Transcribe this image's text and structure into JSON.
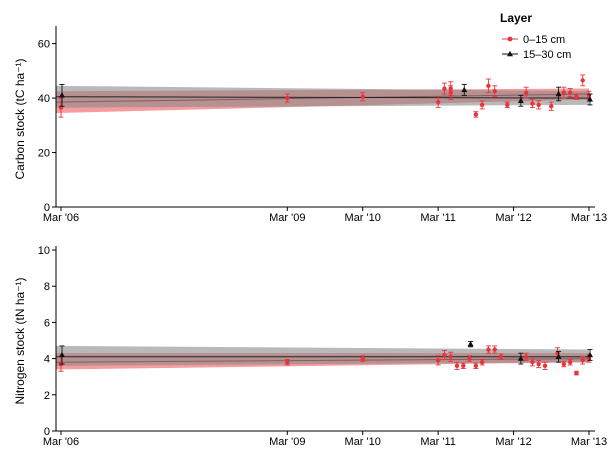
{
  "chart_data": [
    {
      "type": "scatter",
      "title": "",
      "xlabel": "",
      "ylabel": "Carbon stock (tC ha⁻¹)",
      "ylim": [
        0,
        65
      ],
      "yticks": [
        0,
        20,
        40,
        60
      ],
      "x_ticks": [
        "Mar '06",
        "Mar '09",
        "Mar '10",
        "Mar '11",
        "Mar '12",
        "Mar '13"
      ],
      "legend": {
        "title": "Layer",
        "position": "top-right",
        "entries": [
          {
            "label": "0–15 cm",
            "color": "#e8343a"
          },
          {
            "label": "15–30 cm",
            "color": "#111111"
          }
        ]
      },
      "trend_bands": [
        {
          "series": "0–15 cm",
          "color": "#f07b7e",
          "start": [
            38.5,
            34.5,
            42.5
          ],
          "end": [
            41.5,
            39.5,
            43.5
          ]
        },
        {
          "series": "15–30 cm",
          "color": "#8a8a8a",
          "start": [
            40.5,
            36.5,
            44.5
          ],
          "end": [
            40.0,
            37.5,
            42.5
          ]
        }
      ],
      "series": [
        {
          "name": "0–15 cm",
          "color": "#e8343a",
          "points": [
            {
              "x": "2006-03",
              "y": 36.5,
              "err": 3.5
            },
            {
              "x": "2009-03",
              "y": 40.0,
              "err": 1.5
            },
            {
              "x": "2010-03",
              "y": 40.5,
              "err": 1.5
            },
            {
              "x": "2011-03",
              "y": 38.5,
              "err": 2.0
            },
            {
              "x": "2011-04",
              "y": 43.5,
              "err": 2.0
            },
            {
              "x": "2011-05",
              "y": 43.5,
              "err": 2.5
            },
            {
              "x": "2011-05",
              "y": 42.0,
              "err": 2.5
            },
            {
              "x": "2011-09",
              "y": 34.0,
              "err": 1.0
            },
            {
              "x": "2011-10",
              "y": 37.5,
              "err": 1.5
            },
            {
              "x": "2011-11",
              "y": 44.5,
              "err": 2.5
            },
            {
              "x": "2011-12",
              "y": 42.5,
              "err": 2.0
            },
            {
              "x": "2012-02",
              "y": 37.5,
              "err": 1.0
            },
            {
              "x": "2012-05",
              "y": 42.0,
              "err": 2.0
            },
            {
              "x": "2012-06",
              "y": 38.0,
              "err": 1.5
            },
            {
              "x": "2012-07",
              "y": 37.5,
              "err": 1.5
            },
            {
              "x": "2012-09",
              "y": 37.0,
              "err": 1.5
            },
            {
              "x": "2012-11",
              "y": 42.0,
              "err": 2.0
            },
            {
              "x": "2012-12",
              "y": 42.0,
              "err": 1.5
            },
            {
              "x": "2013-01",
              "y": 40.5,
              "err": 1.0
            },
            {
              "x": "2013-02",
              "y": 46.5,
              "err": 2.0
            },
            {
              "x": "2013-03",
              "y": 41.0,
              "err": 1.5
            }
          ]
        },
        {
          "name": "15–30 cm",
          "color": "#111111",
          "points": [
            {
              "x": "2006-03",
              "y": 41.0,
              "err": 4.0
            },
            {
              "x": "2011-07",
              "y": 43.0,
              "err": 2.0
            },
            {
              "x": "2012-04",
              "y": 39.0,
              "err": 2.0
            },
            {
              "x": "2012-10",
              "y": 41.5,
              "err": 2.5
            },
            {
              "x": "2013-03",
              "y": 39.5,
              "err": 2.0
            }
          ]
        }
      ]
    },
    {
      "type": "scatter",
      "title": "",
      "xlabel": "",
      "ylabel": "Nitrogen stock (tN ha⁻¹)",
      "ylim": [
        0,
        10
      ],
      "yticks": [
        0,
        2,
        4,
        6,
        8,
        10
      ],
      "x_ticks": [
        "Mar '06",
        "Mar '09",
        "Mar '10",
        "Mar '11",
        "Mar '12",
        "Mar '13"
      ],
      "trend_bands": [
        {
          "series": "0–15 cm",
          "color": "#f07b7e",
          "start": [
            3.8,
            3.4,
            4.3
          ],
          "end": [
            4.0,
            3.8,
            4.3
          ]
        },
        {
          "series": "15–30 cm",
          "color": "#8a8a8a",
          "start": [
            4.1,
            3.6,
            4.7
          ],
          "end": [
            4.1,
            3.8,
            4.5
          ]
        }
      ],
      "series": [
        {
          "name": "0–15 cm",
          "color": "#e8343a",
          "points": [
            {
              "x": "2006-03",
              "y": 3.7,
              "err": 0.4
            },
            {
              "x": "2009-03",
              "y": 3.8,
              "err": 0.15
            },
            {
              "x": "2010-03",
              "y": 4.0,
              "err": 0.15
            },
            {
              "x": "2011-03",
              "y": 3.9,
              "err": 0.25
            },
            {
              "x": "2011-04",
              "y": 4.2,
              "err": 0.25
            },
            {
              "x": "2011-05",
              "y": 4.1,
              "err": 0.25
            },
            {
              "x": "2011-06",
              "y": 3.6,
              "err": 0.2
            },
            {
              "x": "2011-07",
              "y": 3.6,
              "err": 0.15
            },
            {
              "x": "2011-08",
              "y": 4.0,
              "err": 0.15
            },
            {
              "x": "2011-09",
              "y": 3.6,
              "err": 0.15
            },
            {
              "x": "2011-10",
              "y": 3.8,
              "err": 0.15
            },
            {
              "x": "2011-11",
              "y": 4.5,
              "err": 0.2
            },
            {
              "x": "2011-12",
              "y": 4.5,
              "err": 0.2
            },
            {
              "x": "2012-01",
              "y": 4.1,
              "err": 0.15
            },
            {
              "x": "2012-05",
              "y": 4.1,
              "err": 0.2
            },
            {
              "x": "2012-06",
              "y": 3.8,
              "err": 0.2
            },
            {
              "x": "2012-07",
              "y": 3.7,
              "err": 0.2
            },
            {
              "x": "2012-08",
              "y": 3.6,
              "err": 0.2
            },
            {
              "x": "2012-10",
              "y": 4.3,
              "err": 0.3
            },
            {
              "x": "2012-11",
              "y": 3.7,
              "err": 0.15
            },
            {
              "x": "2012-12",
              "y": 3.8,
              "err": 0.15
            },
            {
              "x": "2013-01",
              "y": 3.2,
              "err": 0.1
            },
            {
              "x": "2013-02",
              "y": 3.9,
              "err": 0.2
            },
            {
              "x": "2013-03",
              "y": 4.0,
              "err": 0.2
            }
          ]
        },
        {
          "name": "15–30 cm",
          "color": "#111111",
          "points": [
            {
              "x": "2006-03",
              "y": 4.2,
              "err": 0.5
            },
            {
              "x": "2011-08",
              "y": 4.8,
              "err": 0.15
            },
            {
              "x": "2012-04",
              "y": 4.0,
              "err": 0.3
            },
            {
              "x": "2012-10",
              "y": 4.1,
              "err": 0.3
            },
            {
              "x": "2013-03",
              "y": 4.2,
              "err": 0.3
            }
          ]
        }
      ]
    }
  ]
}
